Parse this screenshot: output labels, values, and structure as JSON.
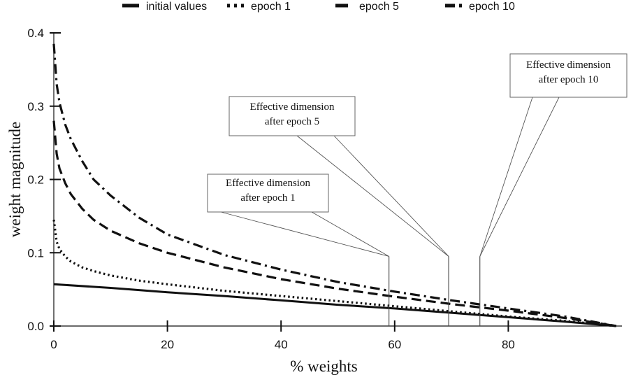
{
  "chart_data": {
    "type": "line",
    "xlabel": "% weights",
    "ylabel": "weight magnitude",
    "xlim": [
      0,
      100
    ],
    "ylim": [
      0,
      0.4
    ],
    "xticks": [
      0,
      20,
      40,
      60,
      80
    ],
    "yticks": [
      0.0,
      0.1,
      0.2,
      0.3,
      0.4
    ],
    "ytick_labels": [
      "0.0",
      "0.1",
      "0.2",
      "0.3",
      "0.4"
    ],
    "grid": false,
    "legend_position": "top",
    "series": [
      {
        "name": "initial values",
        "style": "solid",
        "x": [
          0,
          10,
          20,
          30,
          40,
          50,
          60,
          70,
          80,
          90,
          99
        ],
        "y": [
          0.057,
          0.052,
          0.046,
          0.041,
          0.035,
          0.029,
          0.024,
          0.018,
          0.012,
          0.006,
          0.0
        ]
      },
      {
        "name": "epoch 1",
        "style": "dotted",
        "x": [
          0,
          0.5,
          1,
          2,
          3,
          5,
          7,
          10,
          15,
          20,
          30,
          40,
          50,
          60,
          70,
          80,
          90,
          99
        ],
        "y": [
          0.145,
          0.115,
          0.105,
          0.095,
          0.088,
          0.08,
          0.075,
          0.069,
          0.062,
          0.057,
          0.048,
          0.041,
          0.034,
          0.027,
          0.02,
          0.013,
          0.007,
          0.0
        ]
      },
      {
        "name": "epoch 5",
        "style": "dashed",
        "x": [
          0,
          0.5,
          1,
          2,
          3,
          5,
          7,
          10,
          15,
          20,
          30,
          40,
          50,
          60,
          70,
          80,
          90,
          99
        ],
        "y": [
          0.28,
          0.235,
          0.215,
          0.195,
          0.18,
          0.16,
          0.145,
          0.13,
          0.113,
          0.1,
          0.08,
          0.064,
          0.051,
          0.04,
          0.03,
          0.021,
          0.011,
          0.0
        ]
      },
      {
        "name": "epoch 10",
        "style": "dashdot",
        "x": [
          0,
          0.5,
          1,
          2,
          3,
          5,
          7,
          10,
          15,
          20,
          30,
          40,
          50,
          60,
          70,
          80,
          90,
          99
        ],
        "y": [
          0.385,
          0.33,
          0.305,
          0.275,
          0.255,
          0.225,
          0.2,
          0.178,
          0.148,
          0.125,
          0.097,
          0.077,
          0.06,
          0.047,
          0.035,
          0.024,
          0.013,
          0.0
        ]
      }
    ],
    "annotations": [
      {
        "lines": [
          "Effective dimension",
          "after epoch 1"
        ],
        "x": 59,
        "y": 0.095
      },
      {
        "lines": [
          "Effective dimension",
          "after epoch 5"
        ],
        "x": 69.5,
        "y": 0.095
      },
      {
        "lines": [
          "Effective dimension",
          "after epoch 10"
        ],
        "x": 75,
        "y": 0.095
      }
    ]
  }
}
